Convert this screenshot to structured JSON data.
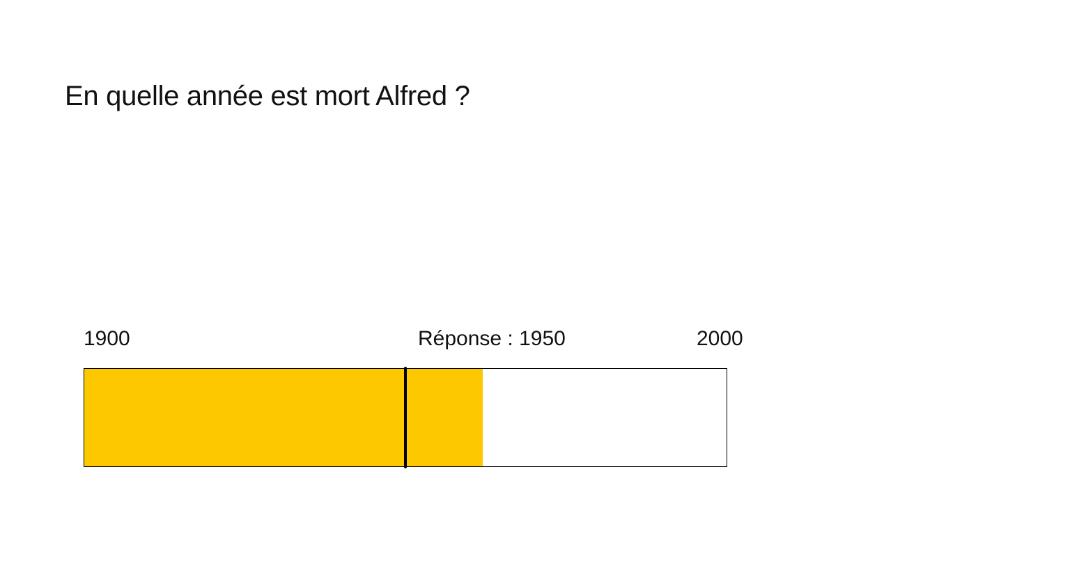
{
  "question": {
    "text": "En quelle année est mort Alfred ?"
  },
  "scale": {
    "min_label": "1900",
    "max_label": "2000",
    "min_value": 1900,
    "max_value": 2000
  },
  "answer": {
    "label": "Réponse : 1950",
    "value": 1950
  },
  "slider": {
    "selected_value": 1962,
    "fill_color": "#FDC800",
    "marker_color": "#000000",
    "track_border_color": "#000000"
  }
}
